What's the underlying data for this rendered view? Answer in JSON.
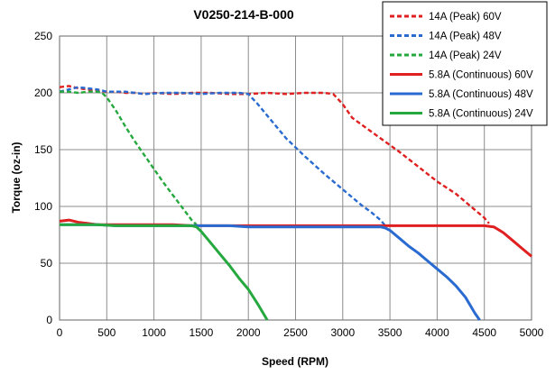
{
  "chart_data": {
    "type": "line",
    "title": "V0250-214-B-000",
    "xlabel": "Speed (RPM)",
    "ylabel": "Torque (oz-in)",
    "xlim": [
      0,
      5000
    ],
    "ylim": [
      0,
      250
    ],
    "xticks": [
      0,
      500,
      1000,
      1500,
      2000,
      2500,
      3000,
      3500,
      4000,
      4500,
      5000
    ],
    "yticks": [
      0,
      50,
      100,
      150,
      200,
      250
    ],
    "grid": true,
    "legend_position": "top-right",
    "series": [
      {
        "name": "14A (Peak) 60V",
        "color": "#e02020",
        "dash": "dashed",
        "x": [
          0,
          100,
          200,
          300,
          400,
          500,
          600,
          700,
          800,
          900,
          1000,
          1200,
          1400,
          1600,
          1800,
          2000,
          2200,
          2400,
          2600,
          2800,
          2900,
          3000,
          3100,
          3200,
          3400,
          3600,
          3800,
          4000,
          4200,
          4400,
          4500,
          4550
        ],
        "y": [
          205,
          206,
          204,
          203,
          202,
          201,
          201,
          200,
          200,
          199,
          200,
          199,
          200,
          200,
          199,
          199,
          200,
          199,
          200,
          200,
          199,
          190,
          178,
          172,
          160,
          148,
          135,
          122,
          111,
          97,
          90,
          85
        ]
      },
      {
        "name": "14A (Peak) 48V",
        "color": "#2a6bd1",
        "dash": "dashed",
        "x": [
          0,
          100,
          200,
          300,
          400,
          500,
          700,
          900,
          1100,
          1300,
          1500,
          1700,
          1900,
          2000,
          2100,
          2200,
          2300,
          2400,
          2500,
          2600,
          2800,
          3000,
          3200,
          3300,
          3400,
          3450
        ],
        "y": [
          201,
          203,
          205,
          204,
          203,
          201,
          201,
          199,
          200,
          200,
          199,
          200,
          200,
          199,
          190,
          180,
          170,
          160,
          152,
          144,
          129,
          115,
          101,
          95,
          88,
          83
        ]
      },
      {
        "name": "14A (Peak) 24V",
        "color": "#25a83e",
        "dash": "dashed",
        "x": [
          0,
          100,
          200,
          300,
          400,
          450,
          500,
          600,
          700,
          800,
          900,
          1000,
          1100,
          1200,
          1300,
          1400,
          1450
        ],
        "y": [
          201,
          201,
          200,
          201,
          201,
          200,
          196,
          184,
          170,
          157,
          145,
          133,
          121,
          110,
          99,
          88,
          84
        ]
      },
      {
        "name": "5.8A (Continuous) 60V",
        "color": "#e02020",
        "dash": "solid",
        "x": [
          0,
          100,
          200,
          300,
          400,
          600,
          800,
          1000,
          1200,
          1400,
          1600,
          1800,
          2000,
          2200,
          2400,
          2600,
          2800,
          3000,
          3200,
          3400,
          3600,
          3800,
          4000,
          4200,
          4400,
          4500,
          4600,
          4700,
          4800,
          4900,
          5000
        ],
        "y": [
          87,
          88,
          86,
          85,
          84,
          84,
          84,
          84,
          84,
          83,
          83,
          83,
          83,
          83,
          83,
          83,
          83,
          83,
          83,
          83,
          83,
          83,
          83,
          83,
          83,
          83,
          82,
          77,
          70,
          63,
          56
        ]
      },
      {
        "name": "5.8A (Continuous) 48V",
        "color": "#2a6bd1",
        "dash": "solid",
        "x": [
          0,
          200,
          400,
          600,
          800,
          1000,
          1200,
          1400,
          1600,
          1800,
          2000,
          2200,
          2400,
          2600,
          2800,
          3000,
          3200,
          3400,
          3450,
          3500,
          3600,
          3700,
          3800,
          3900,
          4000,
          4100,
          4200,
          4300,
          4400,
          4450
        ],
        "y": [
          84,
          84,
          84,
          83,
          83,
          83,
          83,
          83,
          83,
          83,
          82,
          82,
          82,
          82,
          82,
          82,
          82,
          82,
          81,
          79,
          72,
          65,
          59,
          52,
          45,
          38,
          30,
          20,
          6,
          0
        ]
      },
      {
        "name": "5.8A (Continuous) 24V",
        "color": "#25a83e",
        "dash": "solid",
        "x": [
          0,
          200,
          400,
          600,
          800,
          1000,
          1200,
          1400,
          1450,
          1500,
          1600,
          1700,
          1800,
          1900,
          2000,
          2100,
          2200
        ],
        "y": [
          84,
          84,
          84,
          83,
          83,
          83,
          83,
          83,
          82,
          78,
          68,
          58,
          48,
          37,
          27,
          14,
          0
        ]
      }
    ]
  }
}
